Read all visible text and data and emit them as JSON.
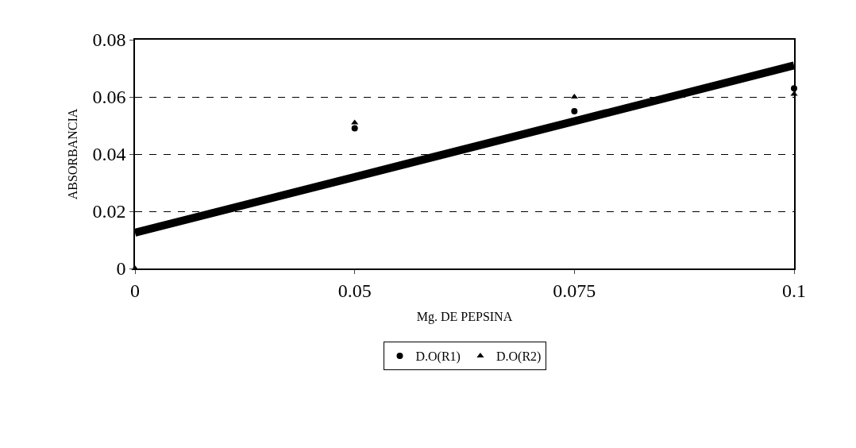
{
  "chart_data": {
    "type": "scatter",
    "xlabel": "Mg. DE PEPSINA",
    "ylabel": "ABSORBANCIA",
    "categories": [
      "0",
      "0.05",
      "0.075",
      "0.1"
    ],
    "series": [
      {
        "name": "D.O(R1)",
        "color": "#000000",
        "marker": "circle",
        "values": [
          null,
          0.049,
          0.055,
          0.063
        ]
      },
      {
        "name": "D.O(R2)",
        "color": "#000000",
        "marker": "triangle",
        "values": [
          0,
          0.051,
          0.06,
          0.061
        ]
      },
      {
        "type": "line",
        "color": "#000000",
        "marker": "none",
        "values": [
          0.0125,
          0.032,
          0.0515,
          0.071
        ]
      }
    ],
    "ylim": [
      0,
      0.08
    ],
    "yticks": [
      0,
      0.02,
      0.04,
      0.06,
      0.08
    ],
    "grid": "y",
    "legend": "bottom"
  }
}
